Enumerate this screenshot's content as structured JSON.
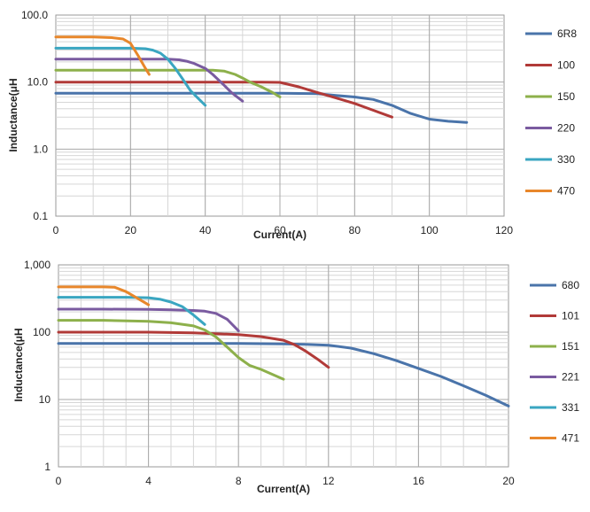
{
  "chart_data": [
    {
      "type": "line",
      "title": "",
      "xlabel": "Current(A)",
      "ylabel": "Inductance(μH",
      "xlim": [
        0,
        120
      ],
      "ylim": [
        0.1,
        100
      ],
      "yscale": "log",
      "grid": true,
      "legend_position": "right",
      "x_ticks": [
        "0",
        "20",
        "40",
        "60",
        "80",
        "100",
        "120"
      ],
      "y_ticks": [
        "0.1",
        "1.0",
        "10.0",
        "100.0"
      ],
      "series": [
        {
          "name": "6R8",
          "color": "#4a74aa",
          "x": [
            0,
            20,
            40,
            60,
            70,
            75,
            80,
            85,
            90,
            95,
            100,
            105,
            110
          ],
          "y": [
            6.8,
            6.8,
            6.8,
            6.8,
            6.7,
            6.3,
            6.0,
            5.5,
            4.5,
            3.4,
            2.8,
            2.6,
            2.5
          ]
        },
        {
          "name": "100",
          "color": "#b13a38",
          "x": [
            0,
            20,
            40,
            55,
            60,
            65,
            70,
            75,
            80,
            85,
            90
          ],
          "y": [
            10,
            10,
            10,
            10,
            9.9,
            8.5,
            7,
            5.8,
            4.8,
            3.8,
            3.0
          ]
        },
        {
          "name": "150",
          "color": "#8db04b",
          "x": [
            0,
            20,
            30,
            40,
            42,
            45,
            48,
            50,
            52,
            55,
            58,
            60
          ],
          "y": [
            15,
            15,
            15,
            15,
            15,
            14.6,
            13,
            11.5,
            10,
            8.5,
            7,
            6
          ]
        },
        {
          "name": "220",
          "color": "#7a5ba0",
          "x": [
            0,
            10,
            20,
            30,
            33,
            35,
            37,
            40,
            42,
            45,
            47,
            50
          ],
          "y": [
            22,
            22,
            22,
            22,
            21.5,
            20.5,
            19,
            16,
            13,
            9,
            7,
            5.2
          ]
        },
        {
          "name": "330",
          "color": "#3aa6c1",
          "x": [
            0,
            10,
            20,
            24,
            26,
            28,
            30,
            32,
            34,
            36,
            38,
            40
          ],
          "y": [
            32,
            32,
            32,
            31.5,
            30,
            27,
            22,
            16,
            11,
            7.5,
            5.8,
            4.5
          ]
        },
        {
          "name": "470",
          "color": "#e8872b",
          "x": [
            0,
            5,
            10,
            15,
            18,
            20,
            22,
            24,
            25
          ],
          "y": [
            47,
            47,
            47,
            46,
            44,
            38,
            25,
            16,
            13
          ]
        }
      ]
    },
    {
      "type": "line",
      "title": "",
      "xlabel": "Current(A)",
      "ylabel": "Inductance(μH",
      "xlim": [
        0,
        20
      ],
      "ylim": [
        1,
        1000
      ],
      "yscale": "log",
      "grid": true,
      "legend_position": "right",
      "x_ticks": [
        "0",
        "4",
        "8",
        "12",
        "16",
        "20"
      ],
      "y_ticks": [
        "1",
        "10",
        "100",
        "1,000"
      ],
      "series": [
        {
          "name": "680",
          "color": "#4a74aa",
          "x": [
            0,
            4,
            8,
            10,
            11,
            12,
            13,
            14,
            15,
            16,
            17,
            18,
            19,
            20
          ],
          "y": [
            68,
            68,
            68,
            67,
            66,
            64,
            58,
            48,
            38,
            29,
            22,
            16,
            11.5,
            8
          ]
        },
        {
          "name": "101",
          "color": "#b13a38",
          "x": [
            0,
            4,
            6,
            8,
            9,
            10,
            10.5,
            11,
            11.5,
            12
          ],
          "y": [
            100,
            100,
            98,
            92,
            86,
            76,
            65,
            52,
            40,
            30
          ]
        },
        {
          "name": "151",
          "color": "#8db04b",
          "x": [
            0,
            2,
            4,
            5,
            6,
            6.5,
            7,
            7.5,
            8,
            8.5,
            9,
            10
          ],
          "y": [
            150,
            150,
            145,
            138,
            124,
            108,
            85,
            60,
            42,
            32,
            28,
            20
          ]
        },
        {
          "name": "221",
          "color": "#7a5ba0",
          "x": [
            0,
            2,
            4,
            5,
            6,
            6.5,
            7,
            7.5,
            8
          ],
          "y": [
            220,
            220,
            218,
            215,
            210,
            205,
            190,
            155,
            105
          ]
        },
        {
          "name": "331",
          "color": "#3aa6c1",
          "x": [
            0,
            2,
            3,
            4,
            4.5,
            5,
            5.5,
            6,
            6.5
          ],
          "y": [
            330,
            330,
            330,
            325,
            310,
            280,
            240,
            180,
            130
          ]
        },
        {
          "name": "471",
          "color": "#e8872b",
          "x": [
            0,
            1,
            2,
            2.5,
            3,
            3.5,
            4
          ],
          "y": [
            470,
            470,
            470,
            465,
            400,
            320,
            255
          ]
        }
      ]
    }
  ]
}
